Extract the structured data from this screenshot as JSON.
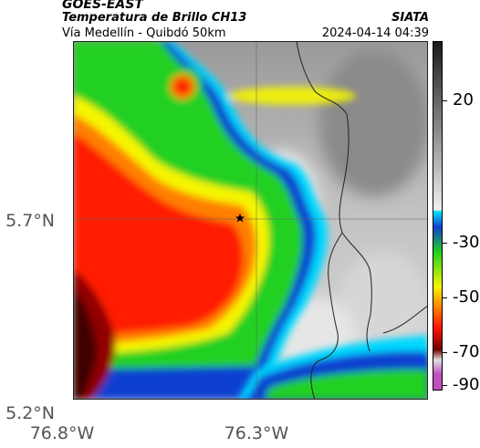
{
  "header": {
    "satellite": "GOES-EAST",
    "product": "Temperatura de Brillo CH13",
    "route": "Vía Medellín - Quibdó 50km",
    "brand": "SIATA",
    "timestamp": "2024-04-14 04:39"
  },
  "axes": {
    "lat_ticks": [
      "5.7°N",
      "5.2°N"
    ],
    "lon_ticks": [
      "76.8°W",
      "76.3°W"
    ]
  },
  "colorbar": {
    "labels": [
      "20",
      "-30",
      "-50",
      "-70",
      "-90"
    ],
    "colors": {
      "warm_gray_top": "#1a1a1a",
      "warm_gray_bottom": "#f0f0f0",
      "cyan": "#00e5ff",
      "blue": "#1040d0",
      "green": "#20d020",
      "yellow": "#f5f500",
      "orange": "#ff8000",
      "red": "#ff1000",
      "dark_red": "#700000",
      "magenta": "#c050c0"
    }
  },
  "map": {
    "marker": "star-icon",
    "grid": true
  }
}
